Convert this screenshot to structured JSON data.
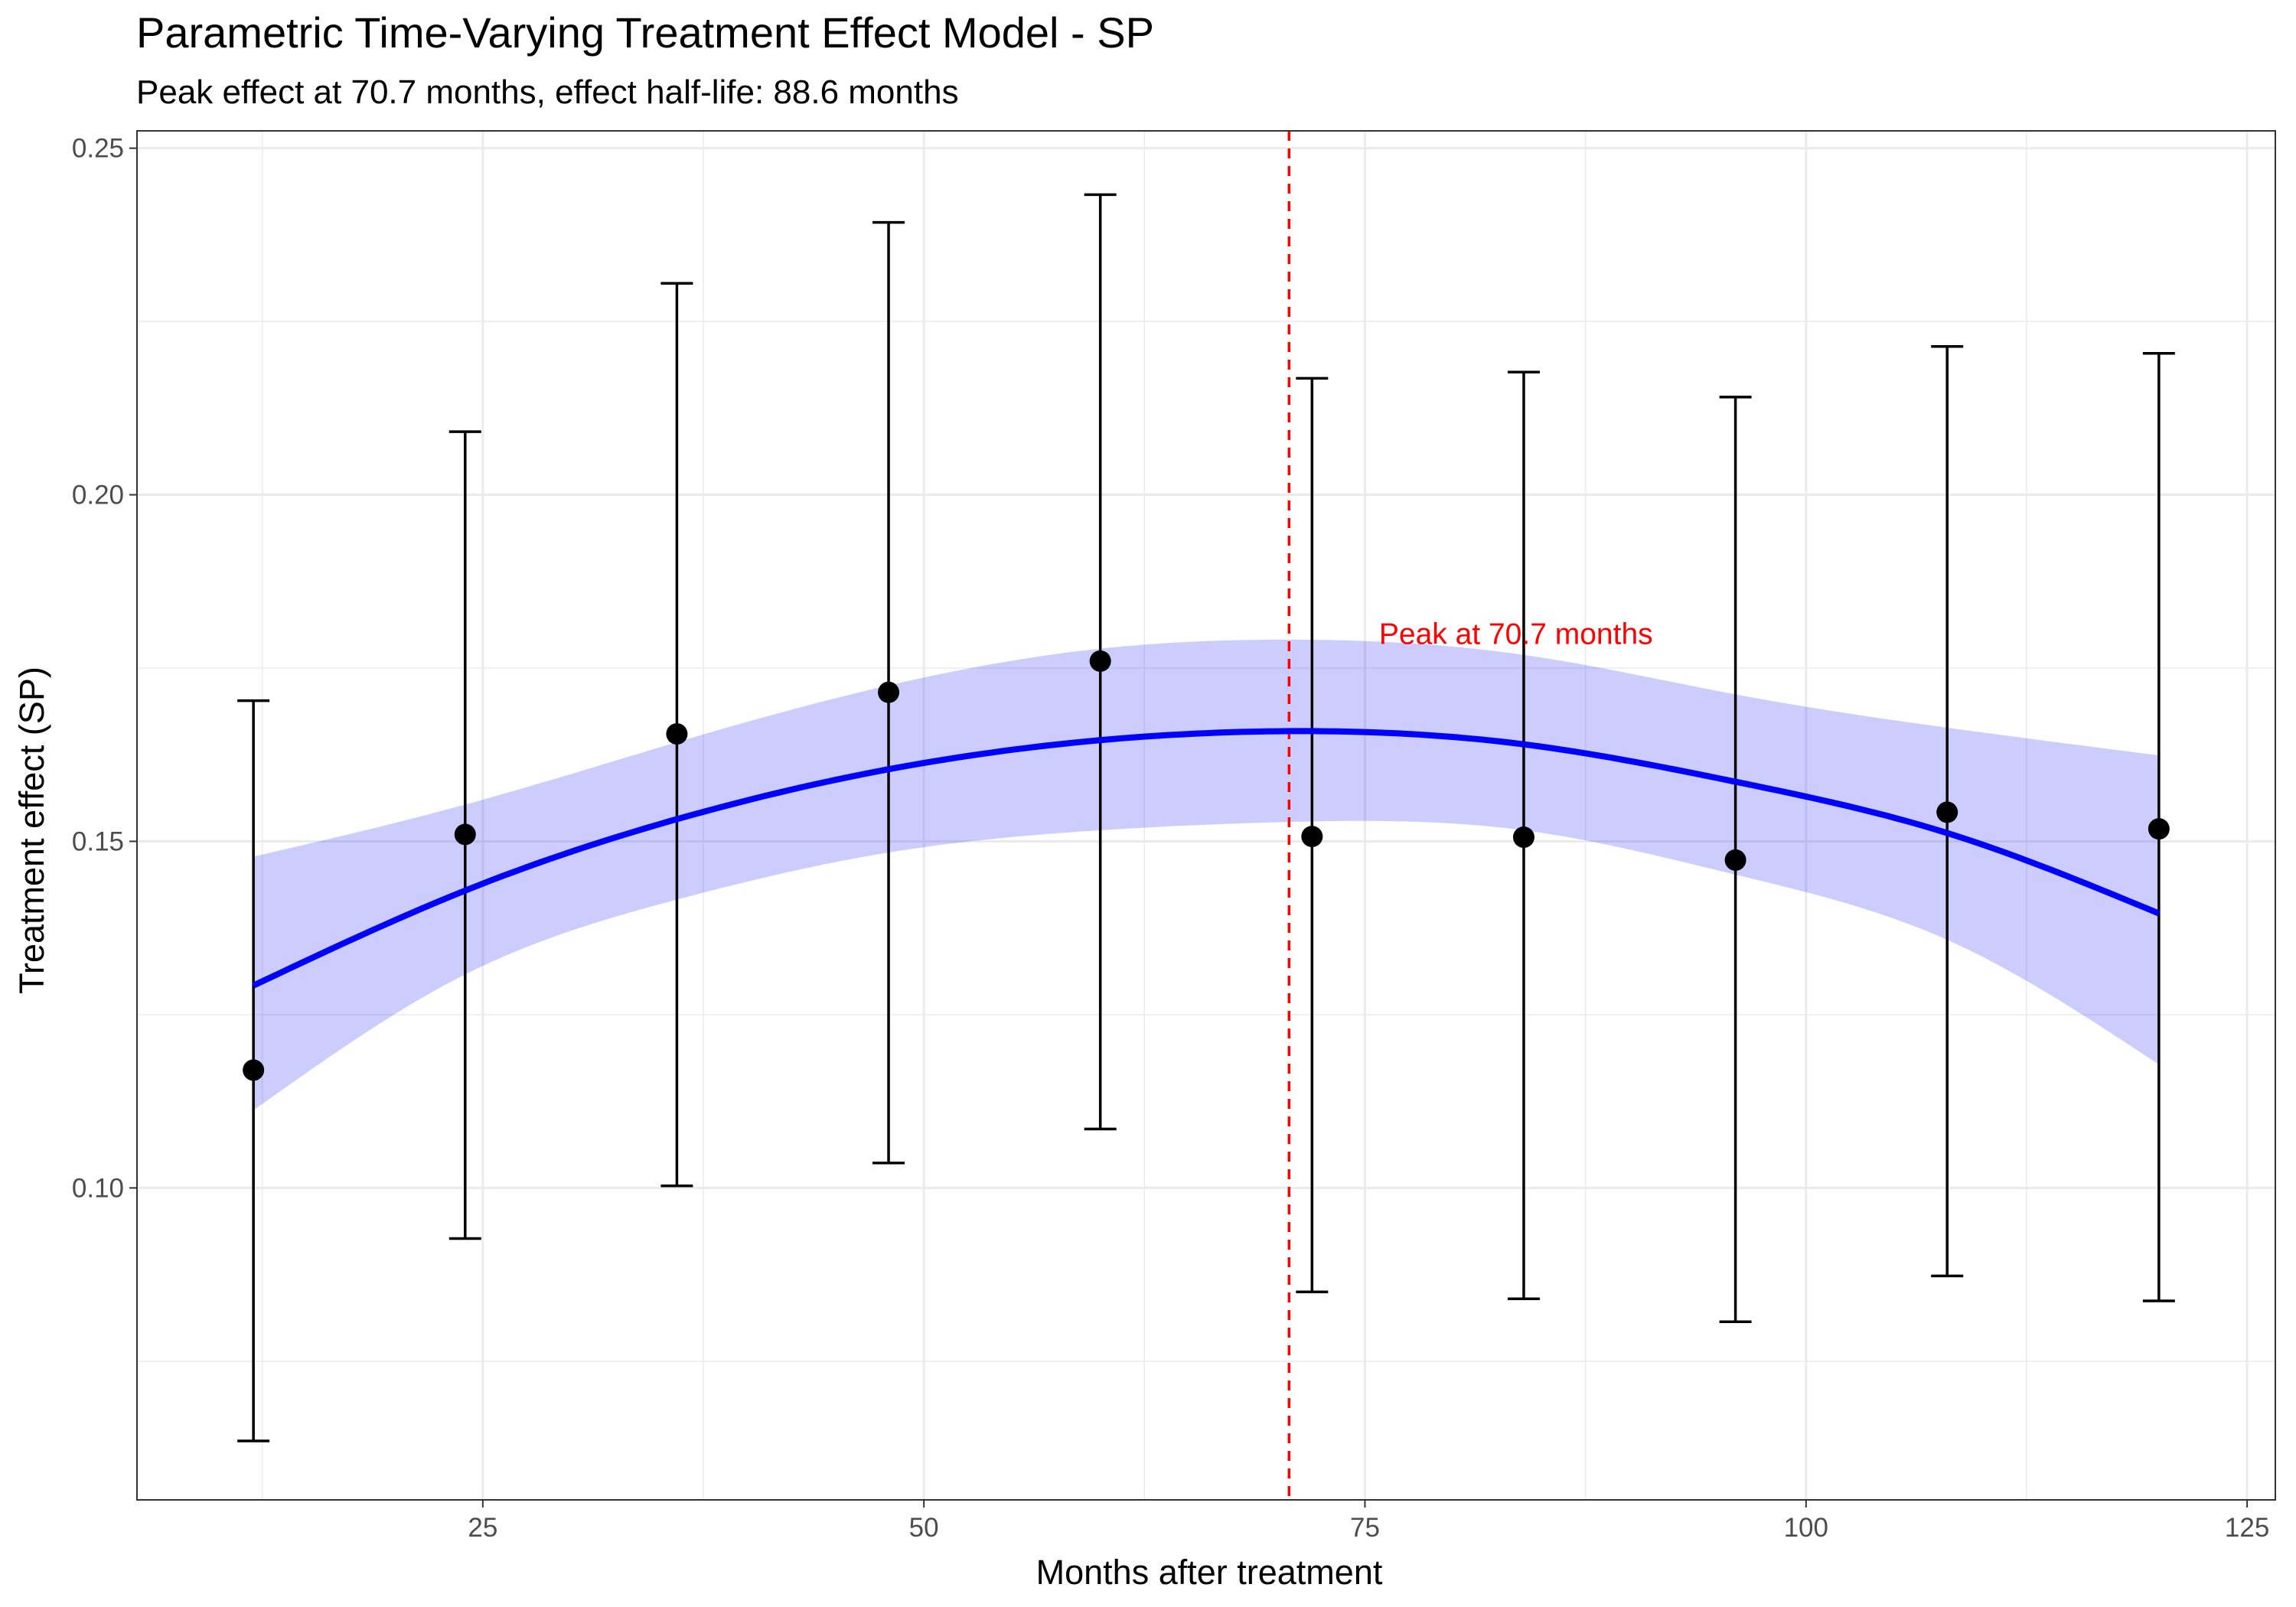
{
  "chart_data": {
    "type": "scatter",
    "title": "Parametric Time-Varying Treatment Effect Model - SP",
    "subtitle": "Peak effect at 70.7 months, effect half-life: 88.6 months",
    "xlabel": "Months after treatment",
    "ylabel": "Treatment effect (SP)",
    "xlim": [
      5.4,
      126.6
    ],
    "ylim": [
      0.055,
      0.2525
    ],
    "x_ticks": [
      25,
      50,
      75,
      100,
      125
    ],
    "x_tick_labels": [
      "25",
      "50",
      "75",
      "100",
      "125"
    ],
    "y_ticks": [
      0.1,
      0.15,
      0.2,
      0.25
    ],
    "y_tick_labels": [
      "0.10",
      "0.15",
      "0.20",
      "0.25"
    ],
    "grid": true,
    "points": [
      {
        "x": 12,
        "y": 0.117,
        "lower": 0.0635,
        "upper": 0.1703
      },
      {
        "x": 24,
        "y": 0.151,
        "lower": 0.0927,
        "upper": 0.2091
      },
      {
        "x": 36,
        "y": 0.1655,
        "lower": 0.1003,
        "upper": 0.2305
      },
      {
        "x": 48,
        "y": 0.1715,
        "lower": 0.1036,
        "upper": 0.2393
      },
      {
        "x": 60,
        "y": 0.176,
        "lower": 0.1085,
        "upper": 0.2433
      },
      {
        "x": 72,
        "y": 0.1507,
        "lower": 0.085,
        "upper": 0.2168
      },
      {
        "x": 84,
        "y": 0.1506,
        "lower": 0.084,
        "upper": 0.2177
      },
      {
        "x": 96,
        "y": 0.1473,
        "lower": 0.0807,
        "upper": 0.2141
      },
      {
        "x": 108,
        "y": 0.1542,
        "lower": 0.0873,
        "upper": 0.2214
      },
      {
        "x": 120,
        "y": 0.1518,
        "lower": 0.0837,
        "upper": 0.2204
      }
    ],
    "fit_line": {
      "x": [
        12,
        24,
        36,
        48,
        60,
        70.7,
        84,
        96,
        108,
        120
      ],
      "y": [
        0.1292,
        0.1429,
        0.1532,
        0.1604,
        0.1646,
        0.1659,
        0.164,
        0.1586,
        0.1512,
        0.1396
      ],
      "color": "#0000FF"
    },
    "ribbon": {
      "x": [
        12,
        24,
        36,
        48,
        60,
        70.7,
        84,
        96,
        108,
        120
      ],
      "lower": [
        0.1112,
        0.1308,
        0.1416,
        0.1484,
        0.1516,
        0.1528,
        0.1516,
        0.1452,
        0.1358,
        0.1178
      ],
      "upper": [
        0.1478,
        0.1553,
        0.1643,
        0.1725,
        0.1778,
        0.1791,
        0.1769,
        0.1712,
        0.1664,
        0.1624
      ],
      "color": "#0000FF",
      "opacity": 0.2
    },
    "peak_line": {
      "x": 70.7,
      "color": "#FF0000"
    },
    "annotation": {
      "text": "Peak at 70.7 months",
      "x": 75.8,
      "y": 0.1785,
      "color": "#FF0000"
    }
  }
}
